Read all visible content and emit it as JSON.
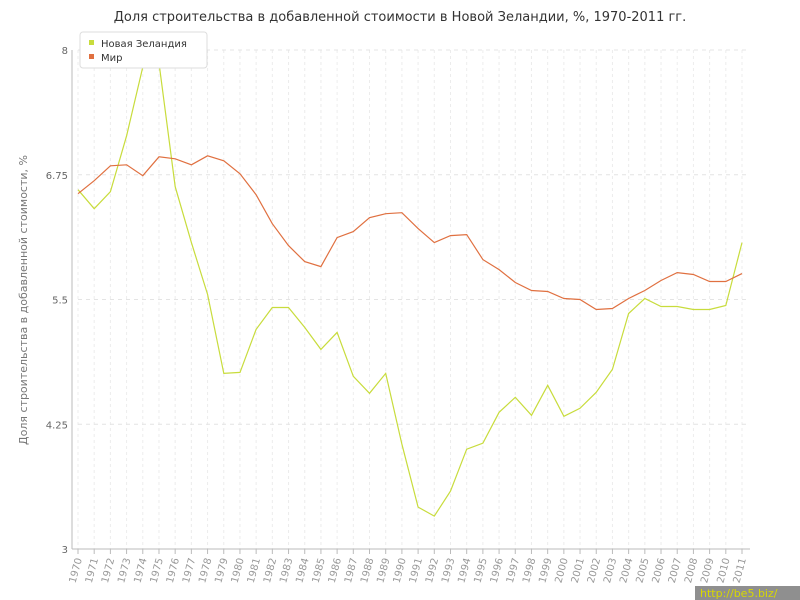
{
  "chart_data": {
    "type": "line",
    "title": "Доля строительства в добавленной стоимости в Новой Зеландии, %, 1970-2011 гг.",
    "ylabel": "Доля строительства в добавленной стоимости, %",
    "xlabel": "",
    "ylim": [
      3,
      8
    ],
    "yticks": [
      "3",
      "4.25",
      "5.5",
      "6.75",
      "8"
    ],
    "categories": [
      "1970",
      "1971",
      "1972",
      "1973",
      "1974",
      "1975",
      "1976",
      "1977",
      "1978",
      "1979",
      "1980",
      "1981",
      "1982",
      "1983",
      "1984",
      "1985",
      "1986",
      "1987",
      "1988",
      "1989",
      "1990",
      "1991",
      "1992",
      "1993",
      "1994",
      "1995",
      "1996",
      "1997",
      "1998",
      "1999",
      "2000",
      "2001",
      "2002",
      "2003",
      "2004",
      "2005",
      "2006",
      "2007",
      "2008",
      "2009",
      "2010",
      "2011"
    ],
    "legend_position": "top-left",
    "grid": true,
    "series": [
      {
        "name": "Новая Зеландия",
        "color": "#c8dc3c",
        "values": [
          6.6,
          6.41,
          6.58,
          7.14,
          7.83,
          7.87,
          6.63,
          6.07,
          5.55,
          4.76,
          4.77,
          5.2,
          5.42,
          5.42,
          5.22,
          5.0,
          5.17,
          4.73,
          4.56,
          4.76,
          4.05,
          3.42,
          3.33,
          3.58,
          4.0,
          4.06,
          4.37,
          4.52,
          4.34,
          4.64,
          4.33,
          4.41,
          4.57,
          4.8,
          5.36,
          5.51,
          5.43,
          5.43,
          5.4,
          5.4,
          5.44,
          6.07
        ]
      },
      {
        "name": "Мир",
        "color": "#e07040",
        "values": [
          6.56,
          6.69,
          6.84,
          6.85,
          6.74,
          6.93,
          6.91,
          6.85,
          6.94,
          6.89,
          6.76,
          6.55,
          6.26,
          6.04,
          5.88,
          5.83,
          6.12,
          6.18,
          6.32,
          6.36,
          6.37,
          6.21,
          6.07,
          6.14,
          6.15,
          5.9,
          5.8,
          5.67,
          5.59,
          5.58,
          5.51,
          5.5,
          5.4,
          5.41,
          5.51,
          5.59,
          5.69,
          5.77,
          5.75,
          5.68,
          5.68,
          5.76
        ]
      }
    ]
  },
  "watermark": "http://be5.biz/"
}
